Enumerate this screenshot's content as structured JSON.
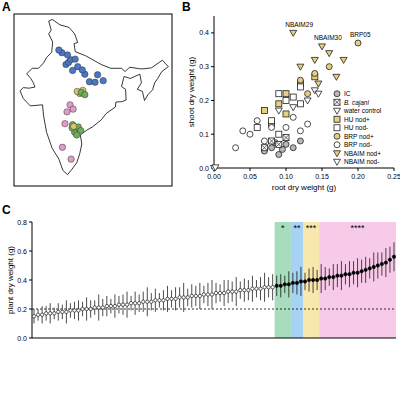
{
  "chart_data": [
    {
      "type": "map",
      "title": "A",
      "x": [
        77.2,
        77.7,
        78.1,
        79.0,
        77.5,
        76.4,
        75.8,
        80.9,
        81.8,
        82.9,
        83.4,
        84.5,
        79.5,
        78.5,
        80.4,
        79.9,
        80.5,
        79.4,
        80.2,
        80.9,
        78.0,
        77.4,
        78.6,
        76.5,
        78.2,
        77.0,
        78.5,
        79.1,
        78.9,
        79.6,
        80.1,
        78.4,
        79.3,
        78.7
      ],
      "y": [
        28.6,
        29.0,
        29.5,
        29.6,
        30.4,
        30.8,
        31.3,
        26.8,
        25.4,
        25.3,
        26.7,
        25.6,
        28.2,
        27.5,
        27.6,
        23.2,
        23.8,
        23.6,
        23.4,
        23.0,
        21.1,
        19.8,
        20.3,
        13.2,
        11.0,
        17.6,
        17.4,
        16.6,
        16.0,
        17.0,
        16.3,
        16.8,
        15.5,
        17.1
      ],
      "colors": [
        "#4a78c2",
        "#4a78c2",
        "#4a78c2",
        "#4a78c2",
        "#4a78c2",
        "#4a78c2",
        "#4a78c2",
        "#4a78c2",
        "#4a78c2",
        "#4a78c2",
        "#4a78c2",
        "#4a78c2",
        "#4a78c2",
        "#4a78c2",
        "#4a78c2",
        "#d9c36c",
        "#d9c36c",
        "#d9c36c",
        "#6fae5a",
        "#6fae5a",
        "#e39ac6",
        "#e39ac6",
        "#e39ac6",
        "#e39ac6",
        "#e39ac6",
        "#e39ac6",
        "#6fae5a",
        "#6fae5a",
        "#6fae5a",
        "#6fae5a",
        "#6fae5a",
        "#6fae5a",
        "#6fae5a",
        "#d9c36c"
      ],
      "xlim": [
        67,
        98
      ],
      "ylim": [
        6,
        38
      ],
      "tick_labels": false
    },
    {
      "type": "scatter",
      "title": "B",
      "x_label": "root dry weight (g)",
      "y_label": "shoot dry weight (g)",
      "xlim": [
        0,
        0.25
      ],
      "ylim": [
        0,
        0.45
      ],
      "xticks": [
        {
          "value": 0,
          "label": "0.00"
        },
        {
          "value": 0.05,
          "label": "0.05"
        },
        {
          "value": 0.1,
          "label": "0.10"
        },
        {
          "value": 0.15,
          "label": "0.15"
        },
        {
          "value": 0.2,
          "label": "0.20"
        },
        {
          "value": 0.25,
          "label": "0.25"
        }
      ],
      "yticks": [
        {
          "value": 0,
          "label": "0.0"
        },
        {
          "value": 0.1,
          "label": "0.1"
        },
        {
          "value": 0.2,
          "label": "0.2"
        },
        {
          "value": 0.3,
          "label": "0.3"
        },
        {
          "value": 0.4,
          "label": "0.4"
        }
      ],
      "legend": "lower right",
      "series": [
        {
          "name": "IC",
          "color": "#b8b8b8",
          "marker": "circle",
          "x": [
            0.07,
            0.08,
            0.09,
            0.1,
            0.11,
            0.12,
            0.085,
            0.095
          ],
          "y": [
            0.05,
            0.06,
            0.04,
            0.07,
            0.06,
            0.08,
            0.075,
            0.055
          ]
        },
        {
          "name": "B. cajani",
          "color": "#ffffff",
          "marker": "square-x",
          "x": [
            0.07,
            0.08,
            0.09,
            0.1
          ],
          "y": [
            0.06,
            0.08,
            0.07,
            0.09
          ]
        },
        {
          "name": "water control",
          "color": "#ffffff",
          "marker": "triangle-down",
          "x": [
            0,
            0.002
          ],
          "y": [
            0,
            0.002
          ]
        },
        {
          "name": "HU nod+",
          "color": "#e6cf7e",
          "marker": "square",
          "x": [
            0.07,
            0.09,
            0.1,
            0.12,
            0.14,
            0.1,
            0.08
          ],
          "y": [
            0.17,
            0.19,
            0.22,
            0.25,
            0.27,
            0.16,
            0.13
          ]
        },
        {
          "name": "HU nod-",
          "color": "#ffffff",
          "marker": "square",
          "x": [
            0.06,
            0.08,
            0.09,
            0.1,
            0.11,
            0.12,
            0.09,
            0.12
          ],
          "y": [
            0.12,
            0.14,
            0.22,
            0.2,
            0.21,
            0.24,
            0.1,
            0.19
          ]
        },
        {
          "name": "BRP nod+",
          "color": "#e6cf7e",
          "marker": "circle",
          "x": [
            0.2,
            0.12,
            0.14,
            0.16,
            0.13
          ],
          "y": [
            0.37,
            0.26,
            0.28,
            0.3,
            0.22
          ]
        },
        {
          "name": "BRP nod-",
          "color": "#ffffff",
          "marker": "circle",
          "x": [
            0.04,
            0.05,
            0.06,
            0.07,
            0.08,
            0.03,
            0.1,
            0.12,
            0.13,
            0.11
          ],
          "y": [
            0.11,
            0.1,
            0.14,
            0.08,
            0.12,
            0.06,
            0.12,
            0.11,
            0.13,
            0.15
          ]
        },
        {
          "name": "NBAIM nod+",
          "color": "#e6cf7e",
          "marker": "triangle-down",
          "x": [
            0.11,
            0.15,
            0.12,
            0.14,
            0.16,
            0.18,
            0.17,
            0.145
          ],
          "y": [
            0.4,
            0.36,
            0.3,
            0.32,
            0.34,
            0.32,
            0.27,
            0.25
          ]
        },
        {
          "name": "NBAIM nod-",
          "color": "#ffffff",
          "marker": "triangle-down",
          "x": [
            0.09,
            0.11,
            0.13,
            0.14,
            0.145
          ],
          "y": [
            0.17,
            0.18,
            0.2,
            0.23,
            0.22
          ]
        }
      ],
      "annotations": [
        {
          "text": "NBAIM29",
          "x": 0.11,
          "y": 0.4
        },
        {
          "text": "NBAIM30",
          "x": 0.15,
          "y": 0.36
        },
        {
          "text": "BRP05",
          "x": 0.2,
          "y": 0.37
        }
      ]
    },
    {
      "type": "dot",
      "title": "C",
      "y_label": "plant dry weight (g)",
      "ylim": [
        0,
        0.8
      ],
      "yticks": [
        {
          "value": 0,
          "label": "0.0"
        },
        {
          "value": 0.2,
          "label": "0.2"
        },
        {
          "value": 0.4,
          "label": "0.4"
        },
        {
          "value": 0.6,
          "label": "0.6"
        },
        {
          "value": 0.8,
          "label": "0.8"
        }
      ],
      "reference_line": 0.2,
      "categories": [
        null,
        null,
        null,
        null,
        null,
        null,
        null,
        null,
        null,
        null,
        null,
        null,
        null,
        null,
        null,
        null,
        null,
        null,
        null,
        null,
        null,
        null,
        null,
        null,
        null,
        null,
        null,
        null,
        null,
        null,
        null,
        null,
        null,
        null,
        null,
        null,
        null,
        null,
        null,
        null,
        null,
        null,
        null,
        null,
        null,
        null,
        null,
        null,
        null,
        null,
        null,
        null,
        null,
        null,
        null,
        null,
        null,
        null,
        null,
        null,
        null,
        null,
        null,
        null,
        null,
        null,
        null,
        null,
        null,
        null,
        null,
        null,
        null,
        null,
        null,
        null,
        null,
        null,
        null,
        null,
        null,
        null,
        null,
        null,
        null,
        null,
        null,
        null,
        null,
        null
      ],
      "values": [
        0.15,
        0.16,
        0.16,
        0.17,
        0.17,
        0.17,
        0.18,
        0.18,
        0.18,
        0.19,
        0.19,
        0.19,
        0.2,
        0.2,
        0.2,
        0.21,
        0.21,
        0.21,
        0.22,
        0.22,
        0.22,
        0.23,
        0.23,
        0.23,
        0.24,
        0.24,
        0.24,
        0.25,
        0.25,
        0.25,
        0.26,
        0.26,
        0.26,
        0.27,
        0.27,
        0.27,
        0.28,
        0.28,
        0.28,
        0.29,
        0.29,
        0.29,
        0.3,
        0.3,
        0.3,
        0.31,
        0.31,
        0.31,
        0.32,
        0.32,
        0.32,
        0.33,
        0.33,
        0.33,
        0.34,
        0.34,
        0.34,
        0.35,
        0.35,
        0.35,
        0.36,
        0.36,
        0.37,
        0.37,
        0.38,
        0.38,
        0.39,
        0.39,
        0.4,
        0.4,
        0.4,
        0.41,
        0.41,
        0.42,
        0.42,
        0.43,
        0.43,
        0.44,
        0.44,
        0.45,
        0.45,
        0.46,
        0.47,
        0.48,
        0.49,
        0.5,
        0.51,
        0.52,
        0.54,
        0.56
      ],
      "error": [
        0.05,
        0.04,
        0.06,
        0.05,
        0.07,
        0.04,
        0.06,
        0.05,
        0.08,
        0.05,
        0.06,
        0.07,
        0.05,
        0.08,
        0.06,
        0.05,
        0.09,
        0.06,
        0.07,
        0.05,
        0.08,
        0.06,
        0.07,
        0.09,
        0.05,
        0.08,
        0.06,
        0.07,
        0.1,
        0.06,
        0.08,
        0.05,
        0.07,
        0.09,
        0.06,
        0.08,
        0.07,
        0.1,
        0.06,
        0.08,
        0.07,
        0.09,
        0.06,
        0.08,
        0.1,
        0.07,
        0.06,
        0.09,
        0.08,
        0.07,
        0.1,
        0.06,
        0.08,
        0.07,
        0.09,
        0.06,
        0.08,
        0.1,
        0.07,
        0.09,
        0.07,
        0.08,
        0.06,
        0.09,
        0.07,
        0.08,
        0.1,
        0.06,
        0.08,
        0.09,
        0.07,
        0.1,
        0.08,
        0.06,
        0.09,
        0.08,
        0.1,
        0.07,
        0.09,
        0.08,
        0.1,
        0.08,
        0.09,
        0.07,
        0.1,
        0.09,
        0.08,
        0.1,
        0.09,
        0.1
      ],
      "bands": [
        {
          "label": "*",
          "from": 60,
          "to": 63,
          "color": "#6cc48f"
        },
        {
          "label": "**",
          "from": 64,
          "to": 66,
          "color": "#6ab4ec"
        },
        {
          "label": "***",
          "from": 67,
          "to": 70,
          "color": "#f3d977"
        },
        {
          "label": "****",
          "from": 71,
          "to": 89,
          "color": "#f3a6dc"
        }
      ]
    }
  ]
}
